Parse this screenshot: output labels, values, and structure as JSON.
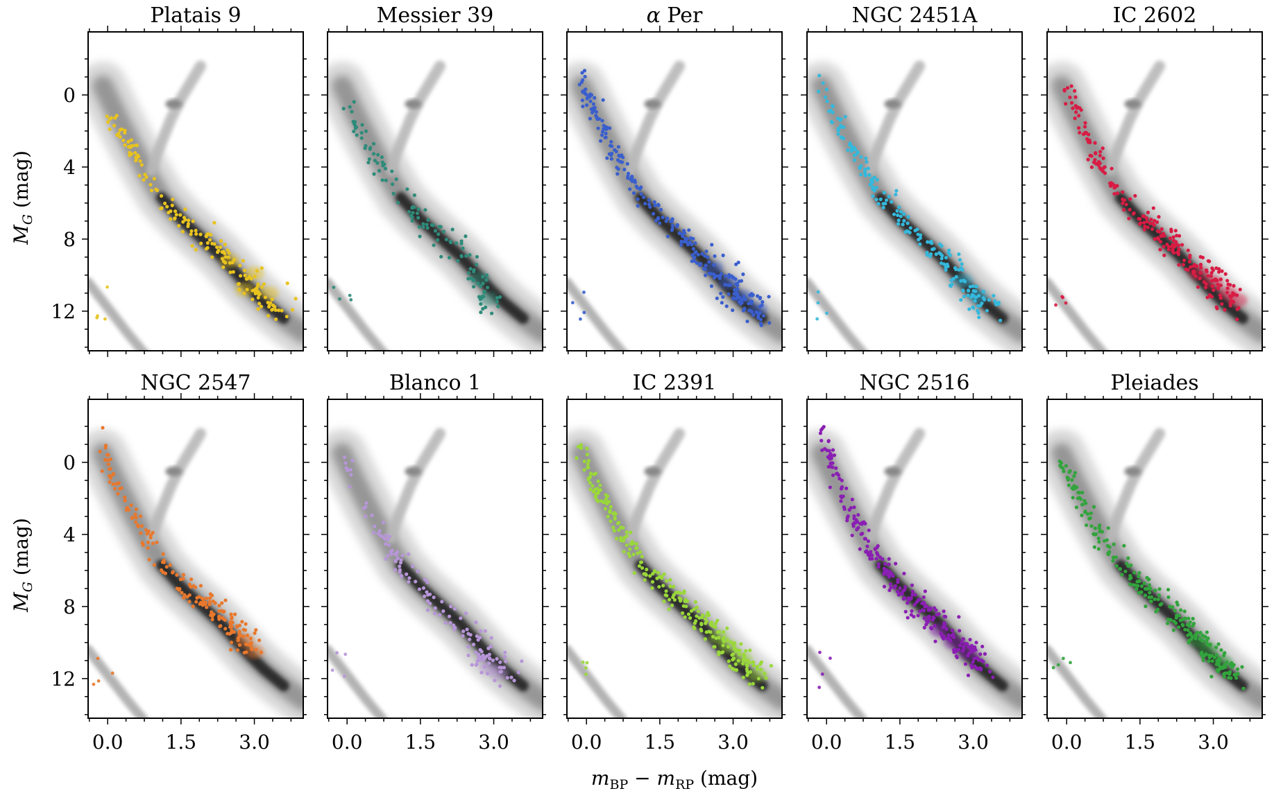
{
  "figure": {
    "type": "multi-panel color-magnitude diagram",
    "x_axis_label": "m_BP − m_RP (mag)",
    "y_axis_label": "M_G (mag)",
    "x_axis_label_parts": {
      "m1": "m",
      "s1": "BP",
      "minus": " − ",
      "m2": "m",
      "s2": "RP",
      "unit": " (mag)"
    },
    "y_axis_label_parts": {
      "m": "M",
      "sub": "G",
      "unit": " (mag)"
    },
    "background_color": "#9a9a9a"
  },
  "chart_data": [
    {
      "type": "scatter",
      "title": "Platais 9",
      "color": "#e8c320",
      "xlim": [
        -0.4,
        4.0
      ],
      "ylim": [
        14.2,
        -3.5
      ],
      "xticks": [
        "0.0",
        "1.5",
        "3.0"
      ],
      "yticks": [
        "0",
        "4",
        "8",
        "12"
      ],
      "main_sequence": [
        [
          -0.05,
          0.9
        ],
        [
          0.1,
          1.6
        ],
        [
          0.3,
          2.4
        ],
        [
          0.55,
          3.3
        ],
        [
          0.8,
          4.6
        ],
        [
          1.1,
          5.9
        ],
        [
          1.5,
          7.1
        ],
        [
          1.9,
          7.8
        ],
        [
          2.3,
          8.7
        ],
        [
          2.6,
          9.6
        ],
        [
          2.9,
          10.4
        ],
        [
          3.2,
          11.2
        ],
        [
          3.6,
          12.3
        ]
      ],
      "highlight": [
        [
          3.0,
          9.9
        ],
        [
          2.8,
          10.8
        ],
        [
          3.3,
          11.0
        ],
        [
          2.5,
          9.2
        ]
      ],
      "n_points": 170
    },
    {
      "type": "scatter",
      "title": "Messier 39",
      "color": "#2e8b7a",
      "xlim": [
        -0.4,
        4.0
      ],
      "ylim": [
        14.2,
        -3.5
      ],
      "xticks": [
        "0.0",
        "1.5",
        "3.0"
      ],
      "yticks": [
        "0",
        "4",
        "8",
        "12"
      ],
      "main_sequence": [
        [
          -0.05,
          0.5
        ],
        [
          0.1,
          1.4
        ],
        [
          0.3,
          2.3
        ],
        [
          0.55,
          3.3
        ],
        [
          0.8,
          4.5
        ],
        [
          1.1,
          5.6
        ],
        [
          1.5,
          6.8
        ],
        [
          1.9,
          7.8
        ],
        [
          2.3,
          8.8
        ],
        [
          2.6,
          9.9
        ],
        [
          2.8,
          10.9
        ],
        [
          3.0,
          11.8
        ]
      ],
      "highlight": [
        [
          2.7,
          10.2
        ],
        [
          2.9,
          11.3
        ]
      ],
      "n_points": 120
    },
    {
      "type": "scatter",
      "title": "α Per",
      "color": "#3a5fcd",
      "xlim": [
        -0.4,
        4.0
      ],
      "ylim": [
        14.2,
        -3.5
      ],
      "xticks": [
        "0.0",
        "1.5",
        "3.0"
      ],
      "yticks": [
        "0",
        "4",
        "8",
        "12"
      ],
      "main_sequence": [
        [
          -0.1,
          -1.2
        ],
        [
          0.05,
          0.3
        ],
        [
          0.25,
          1.6
        ],
        [
          0.5,
          2.9
        ],
        [
          0.8,
          4.2
        ],
        [
          1.1,
          5.5
        ],
        [
          1.5,
          6.8
        ],
        [
          1.9,
          7.8
        ],
        [
          2.3,
          8.9
        ],
        [
          2.7,
          10.0
        ],
        [
          3.0,
          10.9
        ],
        [
          3.3,
          11.6
        ],
        [
          3.7,
          12.3
        ]
      ],
      "highlight": [
        [
          2.9,
          10.4
        ],
        [
          3.2,
          11.2
        ],
        [
          2.6,
          9.6
        ],
        [
          3.5,
          11.9
        ]
      ],
      "n_points": 260
    },
    {
      "type": "scatter",
      "title": "NGC 2451A",
      "color": "#35b8dc",
      "xlim": [
        -0.4,
        4.0
      ],
      "ylim": [
        14.2,
        -3.5
      ],
      "xticks": [
        "0.0",
        "1.5",
        "3.0"
      ],
      "yticks": [
        "0",
        "4",
        "8",
        "12"
      ],
      "main_sequence": [
        [
          -0.15,
          -1.1
        ],
        [
          0.0,
          0.5
        ],
        [
          0.25,
          1.8
        ],
        [
          0.5,
          3.0
        ],
        [
          0.8,
          4.3
        ],
        [
          1.1,
          5.6
        ],
        [
          1.5,
          6.9
        ],
        [
          1.9,
          7.9
        ],
        [
          2.3,
          8.9
        ],
        [
          2.6,
          9.8
        ],
        [
          2.9,
          10.8
        ],
        [
          3.2,
          11.6
        ],
        [
          3.5,
          12.0
        ]
      ],
      "highlight": [
        [
          2.8,
          10.3
        ],
        [
          3.1,
          11.2
        ]
      ],
      "n_points": 190
    },
    {
      "type": "scatter",
      "title": "IC 2602",
      "color": "#d81c44",
      "xlim": [
        -0.4,
        4.0
      ],
      "ylim": [
        14.2,
        -3.5
      ],
      "xticks": [
        "0.0",
        "1.5",
        "3.0"
      ],
      "yticks": [
        "0",
        "4",
        "8",
        "12"
      ],
      "main_sequence": [
        [
          -0.05,
          -1.2
        ],
        [
          0.1,
          0.4
        ],
        [
          0.3,
          1.8
        ],
        [
          0.55,
          3.1
        ],
        [
          0.8,
          4.3
        ],
        [
          1.1,
          5.5
        ],
        [
          1.5,
          6.8
        ],
        [
          1.9,
          7.8
        ],
        [
          2.3,
          8.7
        ],
        [
          2.6,
          9.6
        ],
        [
          2.9,
          10.3
        ],
        [
          3.2,
          10.9
        ],
        [
          3.6,
          11.8
        ]
      ],
      "highlight": [
        [
          3.0,
          10.4
        ],
        [
          3.3,
          11.0
        ],
        [
          2.7,
          9.9
        ],
        [
          3.5,
          11.4
        ]
      ],
      "n_points": 230
    },
    {
      "type": "scatter",
      "title": "NGC 2547",
      "color": "#e8782d",
      "xlim": [
        -0.4,
        4.0
      ],
      "ylim": [
        14.2,
        -3.5
      ],
      "xticks": [
        "0.0",
        "1.5",
        "3.0"
      ],
      "yticks": [
        "0",
        "4",
        "8",
        "12"
      ],
      "main_sequence": [
        [
          -0.1,
          -1.6
        ],
        [
          0.0,
          0.2
        ],
        [
          0.2,
          1.6
        ],
        [
          0.5,
          2.9
        ],
        [
          0.8,
          4.3
        ],
        [
          1.1,
          5.6
        ],
        [
          1.5,
          6.8
        ],
        [
          1.9,
          7.6
        ],
        [
          2.3,
          8.4
        ],
        [
          2.6,
          9.3
        ],
        [
          2.9,
          10.1
        ],
        [
          3.1,
          10.7
        ]
      ],
      "highlight": [
        [
          2.8,
          9.9
        ],
        [
          3.0,
          10.5
        ]
      ],
      "n_points": 180
    },
    {
      "type": "scatter",
      "title": "Blanco 1",
      "color": "#b796d8",
      "xlim": [
        -0.4,
        4.0
      ],
      "ylim": [
        14.2,
        -3.5
      ],
      "xticks": [
        "0.0",
        "1.5",
        "3.0"
      ],
      "yticks": [
        "0",
        "4",
        "8",
        "12"
      ],
      "main_sequence": [
        [
          -0.05,
          0.0
        ],
        [
          0.15,
          1.4
        ],
        [
          0.4,
          2.7
        ],
        [
          0.65,
          3.9
        ],
        [
          0.9,
          5.0
        ],
        [
          1.2,
          6.2
        ],
        [
          1.6,
          7.3
        ],
        [
          2.0,
          8.3
        ],
        [
          2.4,
          9.3
        ],
        [
          2.7,
          10.4
        ],
        [
          2.9,
          11.2
        ],
        [
          3.2,
          11.7
        ],
        [
          3.5,
          11.5
        ]
      ],
      "highlight": [
        [
          2.9,
          11.4
        ],
        [
          3.1,
          11.7
        ]
      ],
      "n_points": 140
    },
    {
      "type": "scatter",
      "title": "IC 2391",
      "color": "#9ad83a",
      "xlim": [
        -0.4,
        4.0
      ],
      "ylim": [
        14.2,
        -3.5
      ],
      "xticks": [
        "0.0",
        "1.5",
        "3.0"
      ],
      "yticks": [
        "0",
        "4",
        "8",
        "12"
      ],
      "main_sequence": [
        [
          -0.15,
          -1.0
        ],
        [
          0.0,
          0.4
        ],
        [
          0.25,
          1.8
        ],
        [
          0.5,
          2.9
        ],
        [
          0.8,
          4.3
        ],
        [
          1.1,
          5.6
        ],
        [
          1.5,
          6.8
        ],
        [
          1.9,
          7.7
        ],
        [
          2.3,
          8.6
        ],
        [
          2.6,
          9.4
        ],
        [
          2.9,
          10.3
        ],
        [
          3.2,
          11.1
        ],
        [
          3.6,
          12.1
        ]
      ],
      "highlight": [
        [
          2.9,
          10.2
        ],
        [
          3.2,
          10.9
        ],
        [
          2.7,
          9.7
        ],
        [
          3.5,
          11.8
        ]
      ],
      "n_points": 250
    },
    {
      "type": "scatter",
      "title": "NGC 2516",
      "color": "#8a1fb3",
      "xlim": [
        -0.4,
        4.0
      ],
      "ylim": [
        14.2,
        -3.5
      ],
      "xticks": [
        "0.0",
        "1.5",
        "3.0"
      ],
      "yticks": [
        "0",
        "4",
        "8",
        "12"
      ],
      "main_sequence": [
        [
          -0.1,
          -2.0
        ],
        [
          0.05,
          -0.5
        ],
        [
          0.2,
          1.0
        ],
        [
          0.45,
          2.6
        ],
        [
          0.7,
          4.0
        ],
        [
          1.0,
          5.3
        ],
        [
          1.35,
          6.6
        ],
        [
          1.7,
          7.6
        ],
        [
          2.1,
          8.6
        ],
        [
          2.4,
          9.4
        ],
        [
          2.7,
          10.1
        ],
        [
          3.0,
          10.8
        ],
        [
          3.1,
          11.3
        ]
      ],
      "highlight": [
        [
          2.6,
          10.0
        ],
        [
          2.9,
          10.6
        ],
        [
          2.3,
          9.3
        ]
      ],
      "n_points": 270
    },
    {
      "type": "scatter",
      "title": "Pleiades",
      "color": "#32a43c",
      "xlim": [
        -0.4,
        4.0
      ],
      "ylim": [
        14.2,
        -3.5
      ],
      "xticks": [
        "0.0",
        "1.5",
        "3.0"
      ],
      "yticks": [
        "0",
        "4",
        "8",
        "12"
      ],
      "main_sequence": [
        [
          -0.1,
          -0.1
        ],
        [
          0.05,
          1.0
        ],
        [
          0.3,
          2.3
        ],
        [
          0.55,
          3.5
        ],
        [
          0.8,
          4.6
        ],
        [
          1.1,
          5.7
        ],
        [
          1.5,
          6.9
        ],
        [
          1.9,
          7.8
        ],
        [
          2.3,
          8.8
        ],
        [
          2.6,
          9.7
        ],
        [
          2.9,
          10.6
        ],
        [
          3.2,
          11.4
        ],
        [
          3.5,
          11.9
        ]
      ],
      "highlight": [
        [
          2.9,
          10.4
        ],
        [
          3.2,
          11.1
        ],
        [
          2.7,
          9.9
        ]
      ],
      "n_points": 240
    }
  ]
}
